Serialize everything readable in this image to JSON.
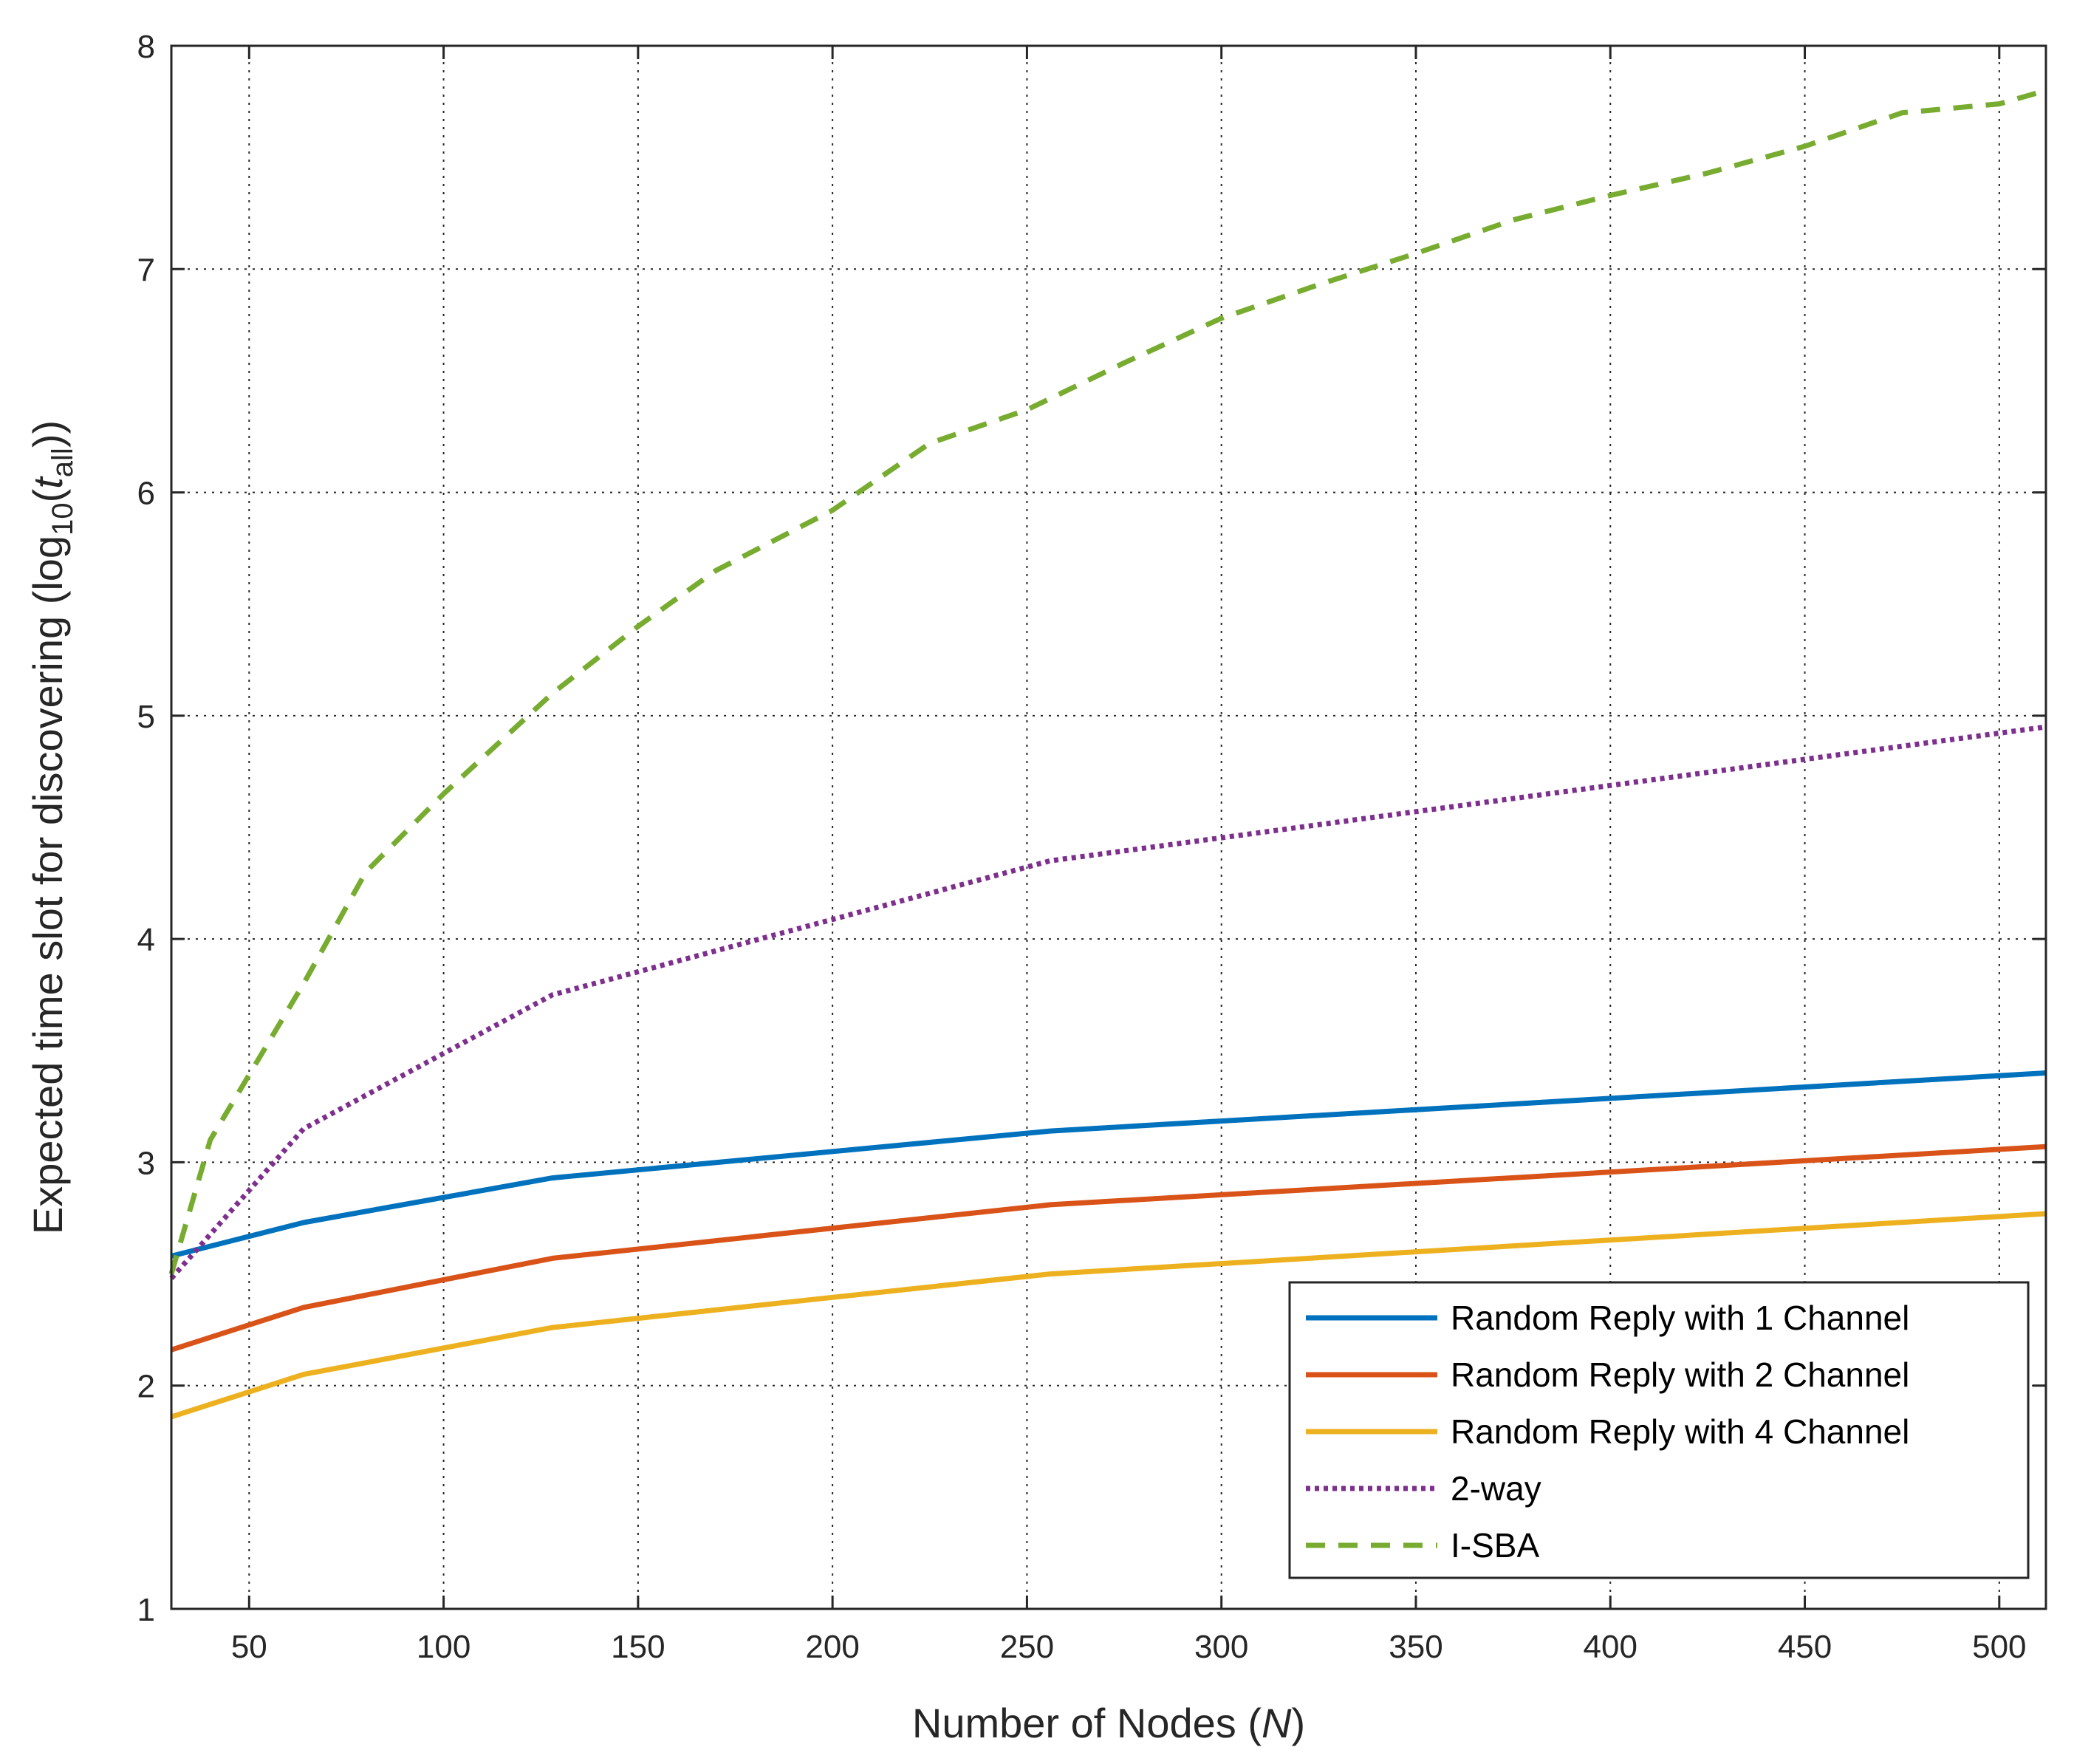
{
  "chart_data": {
    "type": "line",
    "xlabel": {
      "prefix": "Number of Nodes (",
      "italic": "N",
      "suffix": ")"
    },
    "ylabel": {
      "prefix": "Expected time slot for discovering (log",
      "sub": "10",
      "mid": "(",
      "italic": "t",
      "italic_sub": "all",
      "suffix": "))"
    },
    "xlim": [
      30,
      512
    ],
    "ylim": [
      1,
      8
    ],
    "xticks": [
      50,
      100,
      150,
      200,
      250,
      300,
      350,
      400,
      450,
      500
    ],
    "yticks": [
      1,
      2,
      3,
      4,
      5,
      6,
      7,
      8
    ],
    "grid": true,
    "legend_position": "bottom-right",
    "series": [
      {
        "name": "Random Reply with 1 Channel",
        "color": "#0072BD",
        "style": "solid",
        "x": [
          30,
          64,
          128,
          256,
          512
        ],
        "y": [
          2.58,
          2.73,
          2.93,
          3.14,
          3.4
        ]
      },
      {
        "name": "Random Reply with 2 Channel",
        "color": "#D95319",
        "style": "solid",
        "x": [
          30,
          64,
          128,
          256,
          512
        ],
        "y": [
          2.16,
          2.35,
          2.57,
          2.81,
          3.07
        ]
      },
      {
        "name": "Random Reply with 4 Channel",
        "color": "#EDB120",
        "style": "solid",
        "x": [
          30,
          64,
          128,
          256,
          512
        ],
        "y": [
          1.86,
          2.05,
          2.26,
          2.5,
          2.77
        ]
      },
      {
        "name": "2-way",
        "color": "#7E2F8E",
        "style": "dotted",
        "x": [
          30,
          64,
          128,
          256,
          512
        ],
        "y": [
          2.48,
          3.15,
          3.75,
          4.35,
          4.95
        ]
      },
      {
        "name": "I-SBA",
        "color": "#77AC30",
        "style": "dashed",
        "x": [
          30,
          40,
          64,
          80,
          100,
          128,
          150,
          170,
          200,
          225,
          250,
          275,
          300,
          325,
          350,
          375,
          400,
          425,
          450,
          475,
          500,
          512
        ],
        "y": [
          2.5,
          3.1,
          3.8,
          4.3,
          4.65,
          5.1,
          5.4,
          5.65,
          5.92,
          6.22,
          6.37,
          6.58,
          6.78,
          6.93,
          7.07,
          7.22,
          7.33,
          7.43,
          7.55,
          7.7,
          7.74,
          7.8
        ]
      }
    ]
  }
}
